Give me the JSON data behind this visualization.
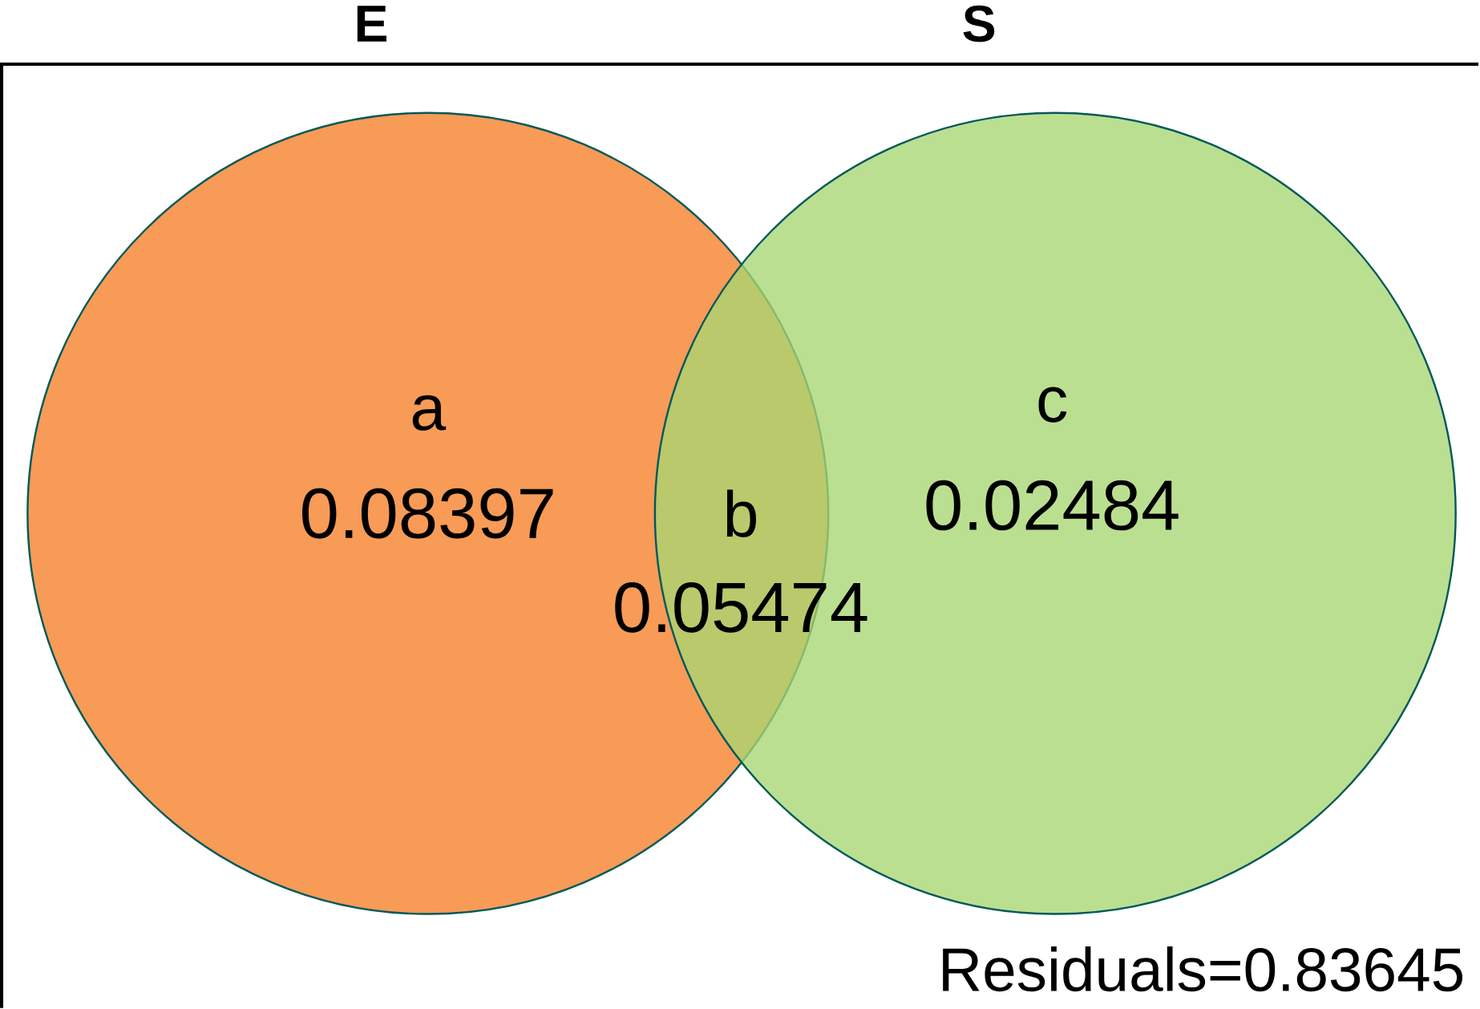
{
  "chart_data": {
    "type": "other",
    "categories": [
      "a",
      "b",
      "c"
    ],
    "series": [
      {
        "name": "E",
        "color": "#f79b57",
        "values": [
          0.08397,
          0.05474,
          null
        ]
      },
      {
        "name": "S",
        "color": "#a8d672",
        "values": [
          null,
          null,
          0.02484
        ]
      }
    ],
    "data_labels": true,
    "annotations": [
      "Residuals=0.83645"
    ]
  }
}
